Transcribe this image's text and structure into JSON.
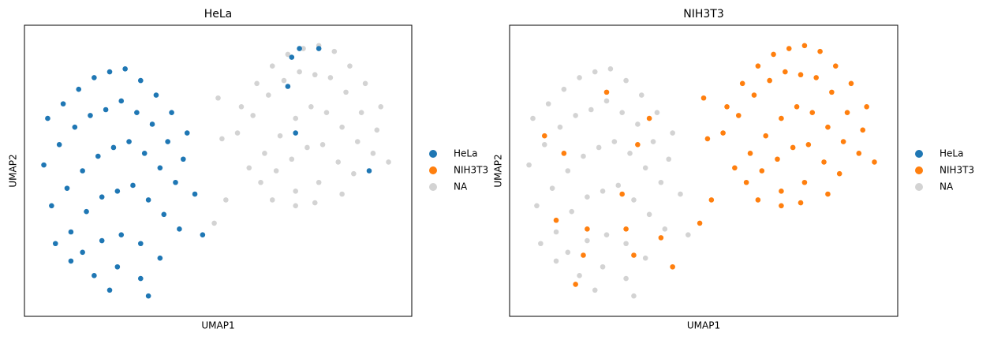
{
  "chart_data": [
    {
      "type": "scatter",
      "title": "HeLa",
      "xlabel": "UMAP1",
      "ylabel": "UMAP2",
      "xlim": [
        0,
        10
      ],
      "ylim": [
        0,
        10
      ],
      "legend": "outside right",
      "series": [
        {
          "name": "HeLa",
          "color": "#1f77b4",
          "x": [
            0.6,
            1.0,
            1.4,
            1.8,
            2.2,
            2.6,
            3.0,
            3.4,
            3.8,
            4.2,
            0.5,
            0.9,
            1.3,
            1.7,
            2.1,
            2.5,
            2.9,
            3.3,
            3.7,
            4.1,
            0.7,
            1.1,
            1.5,
            1.9,
            2.3,
            2.7,
            3.1,
            3.5,
            3.9,
            4.4,
            0.8,
            1.2,
            1.6,
            2.0,
            2.4,
            2.8,
            3.2,
            3.6,
            4.0,
            1.5,
            2.0,
            2.5,
            3.0,
            3.5,
            1.8,
            2.4,
            3.0,
            1.2,
            2.2,
            3.2,
            4.6,
            6.9,
            7.1,
            7.6,
            6.8,
            7.0,
            8.9
          ],
          "y": [
            6.8,
            7.3,
            7.8,
            8.2,
            8.4,
            8.5,
            8.1,
            7.6,
            7.0,
            6.3,
            5.2,
            5.9,
            6.5,
            6.9,
            7.1,
            7.4,
            7.0,
            6.6,
            6.0,
            5.4,
            3.8,
            4.4,
            5.0,
            5.5,
            5.8,
            6.0,
            5.6,
            5.1,
            4.6,
            4.2,
            2.5,
            2.9,
            3.6,
            4.1,
            4.3,
            4.5,
            4.0,
            3.5,
            3.0,
            2.2,
            2.6,
            2.8,
            2.5,
            2.0,
            1.4,
            1.7,
            1.3,
            1.9,
            0.9,
            0.7,
            2.8,
            8.9,
            9.2,
            9.2,
            7.9,
            6.3,
            5.0
          ]
        },
        {
          "name": "NIH3T3",
          "color": "#ff7f0e",
          "x": [],
          "y": []
        },
        {
          "name": "NA",
          "color": "#d3d3d3",
          "x": [
            5.6,
            6.0,
            6.4,
            6.8,
            7.2,
            7.6,
            8.0,
            8.4,
            8.8,
            9.2,
            5.5,
            5.9,
            6.3,
            6.7,
            7.1,
            7.5,
            7.9,
            8.3,
            8.7,
            9.1,
            5.8,
            6.2,
            6.6,
            7.0,
            7.4,
            7.8,
            8.2,
            8.6,
            9.0,
            9.4,
            6.1,
            6.5,
            6.9,
            7.3,
            7.7,
            8.1,
            8.5,
            6.4,
            7.0,
            7.6,
            8.2,
            7.0,
            7.5,
            5.0,
            5.1,
            5.2,
            4.9
          ],
          "y": [
            7.2,
            8.0,
            8.6,
            9.0,
            9.2,
            9.3,
            9.1,
            8.6,
            8.0,
            7.2,
            6.3,
            6.9,
            7.6,
            8.1,
            8.4,
            8.3,
            8.2,
            7.7,
            7.0,
            6.4,
            5.1,
            5.6,
            6.2,
            6.8,
            7.2,
            7.0,
            6.5,
            6.0,
            5.6,
            5.3,
            4.6,
            5.0,
            5.4,
            5.8,
            5.9,
            5.3,
            4.9,
            4.0,
            4.3,
            4.6,
            4.2,
            3.8,
            3.9,
            7.5,
            6.1,
            4.0,
            3.2
          ]
        }
      ]
    },
    {
      "type": "scatter",
      "title": "NIH3T3",
      "xlabel": "UMAP1",
      "ylabel": "UMAP2",
      "xlim": [
        0,
        10
      ],
      "ylim": [
        0,
        10
      ],
      "legend": "outside right",
      "series": [
        {
          "name": "HeLa",
          "color": "#1f77b4",
          "x": [],
          "y": []
        },
        {
          "name": "NIH3T3",
          "color": "#ff7f0e",
          "x": [
            5.6,
            6.0,
            6.4,
            6.8,
            7.2,
            7.6,
            8.0,
            8.4,
            8.8,
            9.2,
            5.5,
            5.9,
            6.3,
            6.7,
            7.1,
            7.5,
            7.9,
            8.3,
            8.7,
            9.1,
            5.8,
            6.2,
            6.6,
            7.0,
            7.4,
            7.8,
            8.2,
            8.6,
            9.0,
            9.4,
            6.1,
            6.5,
            6.9,
            7.3,
            7.7,
            8.1,
            8.5,
            6.4,
            7.0,
            7.6,
            8.2,
            7.0,
            7.5,
            5.0,
            5.1,
            5.2,
            4.9,
            0.9,
            1.4,
            2.5,
            3.6,
            3.3,
            2.9,
            1.2,
            2.0,
            3.0,
            1.9,
            3.2,
            1.7,
            4.2,
            3.9
          ],
          "y": [
            7.2,
            8.0,
            8.6,
            9.0,
            9.2,
            9.3,
            9.1,
            8.6,
            8.0,
            7.2,
            6.3,
            6.9,
            7.6,
            8.1,
            8.4,
            8.3,
            8.2,
            7.7,
            7.0,
            6.4,
            5.1,
            5.6,
            6.2,
            6.8,
            7.2,
            7.0,
            6.5,
            6.0,
            5.6,
            5.3,
            4.6,
            5.0,
            5.4,
            5.8,
            5.9,
            5.3,
            4.9,
            4.0,
            4.3,
            4.6,
            4.2,
            3.8,
            3.9,
            7.5,
            6.1,
            4.0,
            3.2,
            6.2,
            5.6,
            7.7,
            6.8,
            5.9,
            4.2,
            3.3,
            3.0,
            3.0,
            2.1,
            2.1,
            1.1,
            1.7,
            2.7
          ]
        },
        {
          "name": "NA",
          "color": "#d3d3d3",
          "x": [
            0.6,
            1.0,
            1.4,
            1.8,
            2.2,
            2.6,
            3.0,
            3.4,
            3.8,
            4.2,
            0.5,
            0.9,
            1.3,
            1.7,
            2.1,
            2.5,
            2.9,
            3.3,
            3.7,
            4.1,
            0.7,
            1.1,
            1.5,
            1.9,
            2.3,
            2.7,
            3.1,
            3.5,
            3.9,
            4.4,
            0.8,
            1.2,
            1.6,
            2.0,
            2.4,
            2.8,
            3.2,
            3.6,
            4.0,
            1.5,
            2.0,
            2.5,
            3.0,
            3.5,
            1.8,
            2.4,
            3.0,
            1.2,
            2.2,
            3.2,
            4.6
          ],
          "y": [
            6.8,
            7.3,
            7.8,
            8.2,
            8.4,
            8.5,
            8.1,
            7.6,
            7.0,
            6.3,
            5.2,
            5.9,
            6.5,
            6.9,
            7.1,
            7.4,
            7.0,
            6.6,
            6.0,
            5.4,
            3.8,
            4.4,
            5.0,
            5.5,
            5.8,
            6.0,
            5.6,
            5.1,
            4.6,
            4.2,
            2.5,
            2.9,
            3.6,
            4.1,
            4.3,
            4.5,
            4.0,
            3.5,
            3.0,
            2.2,
            2.6,
            2.8,
            2.5,
            2.0,
            1.4,
            1.7,
            1.3,
            1.9,
            0.9,
            0.7,
            2.8
          ]
        }
      ]
    }
  ]
}
